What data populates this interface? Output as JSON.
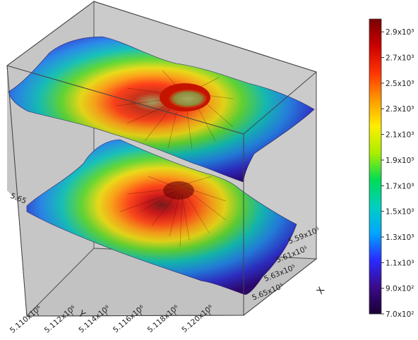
{
  "chart_data": {
    "type": "surface3d",
    "title": "",
    "xlabel": "X",
    "ylabel": "Y",
    "x_ticks": [
      "5.59x10⁵",
      "5.61x10⁵",
      "5.63x10⁵",
      "5.65x10⁵"
    ],
    "y_ticks": [
      "5.110x10⁶",
      "5.112x10⁶",
      "5.114x10⁶",
      "5.116x10⁶",
      "5.118x10⁶",
      "5.120x10⁶"
    ],
    "z_tick_partial": "5.65",
    "colorbar": {
      "min": 700,
      "max": 3000,
      "ticks": [
        "2.9x10³",
        "2.7x10³",
        "2.5x10³",
        "2.3x10³",
        "2.1x10³",
        "1.9x10³",
        "1.7x10³",
        "1.5x10³",
        "1.3x10³",
        "1.1x10³",
        "9.0x10²",
        "7.0x10²"
      ],
      "tick_values": [
        2900,
        2700,
        2500,
        2300,
        2100,
        1900,
        1700,
        1500,
        1300,
        1100,
        900,
        700
      ],
      "colors": [
        "#1a0033",
        "#3b0a8a",
        "#2a2aff",
        "#00a6ff",
        "#00d0c0",
        "#00dd55",
        "#aaee00",
        "#ffee00",
        "#ff9a00",
        "#ff3300",
        "#cc0000",
        "#7a0000"
      ]
    },
    "surfaces": [
      {
        "name": "upper",
        "shape": "volcano with summit crater",
        "peak_z": 2600
      },
      {
        "name": "lower",
        "shape": "volcano cone",
        "peak_z": 2950
      }
    ],
    "grid": false,
    "legend": "colorbar right"
  }
}
